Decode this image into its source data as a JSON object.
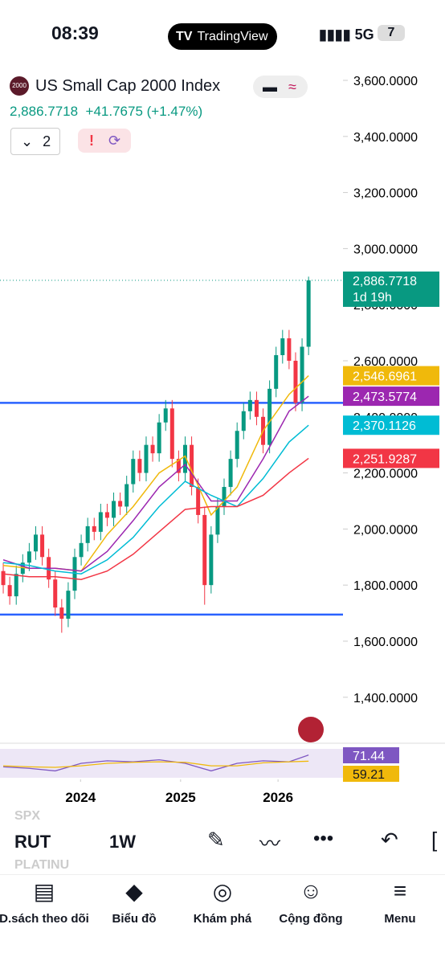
{
  "status_bar": {
    "time": "08:39",
    "app": "TradingView",
    "network": "5G",
    "battery": "7"
  },
  "header": {
    "logo": "2000",
    "title": "US Small Cap 2000 Index",
    "price": "2,886.7718",
    "change": "+41.7675 (+1.47%)",
    "indicator_count": "2"
  },
  "chart_data": {
    "type": "candlestick",
    "open": [
      1850,
      1800,
      1760,
      1840,
      1880,
      1920,
      1980,
      1900,
      1820,
      1720,
      1680,
      1780,
      1900,
      1950,
      2010,
      1990,
      2060,
      2040,
      2100,
      2080,
      2160,
      2250,
      2200,
      2300,
      2270,
      2380,
      2430,
      2250,
      2200,
      2300,
      2150,
      2050,
      1800,
      1980,
      2080,
      2150,
      2250,
      2350,
      2420,
      2460,
      2400,
      2300,
      2500,
      2620,
      2680,
      2600,
      2450,
      2650
    ],
    "high": [
      1880,
      1830,
      1870,
      1910,
      1950,
      2010,
      2010,
      1930,
      1850,
      1750,
      1810,
      1930,
      1980,
      2040,
      2040,
      2090,
      2090,
      2130,
      2130,
      2190,
      2280,
      2280,
      2330,
      2330,
      2410,
      2460,
      2460,
      2280,
      2330,
      2330,
      2180,
      2080,
      2010,
      2110,
      2180,
      2280,
      2380,
      2450,
      2490,
      2490,
      2430,
      2530,
      2650,
      2710,
      2710,
      2630,
      2680,
      2900
    ],
    "low": [
      1770,
      1730,
      1730,
      1810,
      1850,
      1890,
      1870,
      1790,
      1690,
      1630,
      1650,
      1750,
      1870,
      1920,
      1960,
      1960,
      2010,
      2010,
      2050,
      2050,
      2130,
      2170,
      2170,
      2240,
      2240,
      2350,
      2220,
      2170,
      2170,
      2120,
      2020,
      1730,
      1770,
      1950,
      2050,
      2120,
      2220,
      2320,
      2390,
      2370,
      2270,
      2270,
      2470,
      2590,
      2570,
      2420,
      2420,
      2620
    ],
    "close": [
      1800,
      1760,
      1840,
      1880,
      1920,
      1980,
      1900,
      1820,
      1720,
      1680,
      1780,
      1900,
      1950,
      2010,
      1990,
      2060,
      2040,
      2100,
      2080,
      2160,
      2250,
      2200,
      2300,
      2270,
      2380,
      2430,
      2250,
      2200,
      2300,
      2150,
      2050,
      1800,
      1980,
      2080,
      2150,
      2250,
      2350,
      2420,
      2460,
      2400,
      2300,
      2500,
      2620,
      2680,
      2600,
      2450,
      2650,
      2886.7718
    ],
    "up_color": "#089981",
    "down_color": "#f23645",
    "xlim": [
      -0.5,
      47.6
    ],
    "xticks": [
      {
        "value": 11.9,
        "label": "2024"
      },
      {
        "value": 27.3,
        "label": "2025"
      },
      {
        "value": 42.3,
        "label": "2026"
      }
    ],
    "ylim": [
      1236,
      3643
    ],
    "yticks": [
      {
        "value": 3600,
        "label": "3,600.0000"
      },
      {
        "value": 3400,
        "label": "3,400.0000"
      },
      {
        "value": 3200,
        "label": "3,200.0000"
      },
      {
        "value": 3000,
        "label": "3,000.0000"
      },
      {
        "value": 2800,
        "label": "2,800.0000"
      },
      {
        "value": 2600,
        "label": "2,600.0000"
      },
      {
        "value": 2400,
        "label": "2,400.0000"
      },
      {
        "value": 2200,
        "label": "2,200.0000"
      },
      {
        "value": 2000,
        "label": "2,000.0000"
      },
      {
        "value": 1800,
        "label": "1,800.0000"
      },
      {
        "value": 1600,
        "label": "1,600.0000"
      },
      {
        "value": 1400,
        "label": "1,400.0000"
      }
    ],
    "hlines": [
      2450,
      1695
    ],
    "hline_color": "#2962ff",
    "last_price": {
      "value": 2886.7718,
      "label": "2,886.7718",
      "countdown": "1d 19h",
      "color": "#089981"
    },
    "ma_x": [
      0,
      4,
      8,
      12,
      16,
      20,
      24,
      28,
      32,
      36,
      40,
      44,
      47
    ],
    "series": [
      {
        "color": "#f0b90b",
        "values": [
          1870,
          1860,
          1860,
          1850,
          1980,
          2080,
          2200,
          2260,
          2050,
          2150,
          2350,
          2480,
          2546.6961
        ],
        "tag": "2,546.6961"
      },
      {
        "color": "#9c27b0",
        "values": [
          1890,
          1860,
          1860,
          1850,
          1920,
          2030,
          2150,
          2230,
          2100,
          2100,
          2250,
          2420,
          2473.5774
        ],
        "tag": "2,473.5774"
      },
      {
        "color": "#00bcd4",
        "values": [
          1880,
          1870,
          1850,
          1840,
          1890,
          1970,
          2080,
          2170,
          2120,
          2080,
          2180,
          2310,
          2370.1126
        ],
        "tag": "2,370.1126"
      },
      {
        "color": "#f23645",
        "values": [
          1840,
          1830,
          1830,
          1820,
          1850,
          1910,
          1990,
          2070,
          2080,
          2080,
          2120,
          2200,
          2251.9287
        ],
        "tag": "2,251.9287"
      }
    ],
    "rsi": {
      "ylim": [
        20,
        90
      ],
      "series": [
        {
          "color": "#7e57c2",
          "values": [
            48,
            45,
            40,
            55,
            60,
            58,
            62,
            55,
            40,
            55,
            60,
            58,
            71.44
          ],
          "tag": "71.44"
        },
        {
          "color": "#f0b90b",
          "values": [
            50,
            48,
            47,
            50,
            55,
            57,
            58,
            57,
            50,
            50,
            56,
            58,
            59.21
          ],
          "tag": "59.21"
        }
      ]
    }
  },
  "toolbar": {
    "symbols": [
      "SPX",
      "RUT",
      "PLATINU"
    ],
    "interval": "1W"
  },
  "nav": [
    "D.sách theo dõi",
    "Biểu đồ",
    "Khám phá",
    "Cộng đồng",
    "Menu"
  ]
}
